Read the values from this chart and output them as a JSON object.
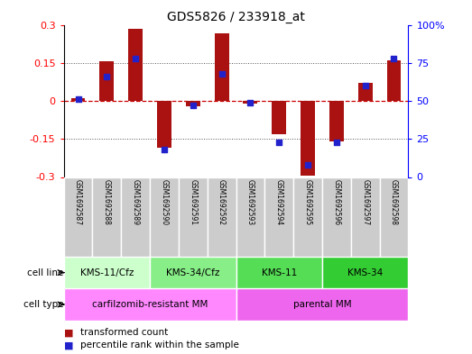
{
  "title": "GDS5826 / 233918_at",
  "samples": [
    "GSM1692587",
    "GSM1692588",
    "GSM1692589",
    "GSM1692590",
    "GSM1692591",
    "GSM1692592",
    "GSM1692593",
    "GSM1692594",
    "GSM1692595",
    "GSM1692596",
    "GSM1692597",
    "GSM1692598"
  ],
  "transformed_counts": [
    0.01,
    0.155,
    0.285,
    -0.185,
    -0.02,
    0.265,
    -0.01,
    -0.13,
    -0.295,
    -0.16,
    0.07,
    0.16
  ],
  "percentile_ranks": [
    51,
    66,
    78,
    18,
    47,
    68,
    49,
    23,
    8,
    23,
    60,
    78
  ],
  "ylim": [
    -0.3,
    0.3
  ],
  "yticks_left": [
    -0.3,
    -0.15,
    0,
    0.15,
    0.3
  ],
  "ytick_labels_left": [
    "-0.3",
    "-0.15",
    "0",
    "0.15",
    "0.3"
  ],
  "yticks_right_pct": [
    0,
    25,
    50,
    75,
    100
  ],
  "bar_color": "#aa1111",
  "dot_color": "#2222cc",
  "hline_color": "#cc0000",
  "dot_hline_color": "#cc0000",
  "grid_line_color": "#555555",
  "spine_color": "#000000",
  "cell_lines": [
    {
      "label": "KMS-11/Cfz",
      "start": 0,
      "end": 3,
      "color": "#ccffcc"
    },
    {
      "label": "KMS-34/Cfz",
      "start": 3,
      "end": 6,
      "color": "#88ee88"
    },
    {
      "label": "KMS-11",
      "start": 6,
      "end": 9,
      "color": "#55dd55"
    },
    {
      "label": "KMS-34",
      "start": 9,
      "end": 12,
      "color": "#33cc33"
    }
  ],
  "cell_types": [
    {
      "label": "carfilzomib-resistant MM",
      "start": 0,
      "end": 6,
      "color": "#ff88ff"
    },
    {
      "label": "parental MM",
      "start": 6,
      "end": 12,
      "color": "#ee66ee"
    }
  ],
  "sample_bg_color": "#cccccc",
  "sample_border_color": "#ffffff",
  "legend_bar_label": "transformed count",
  "legend_dot_label": "percentile rank within the sample",
  "bar_width": 0.5,
  "bar_linewidth": 0,
  "cell_label_left": "cell line",
  "cell_type_label_left": "cell type"
}
